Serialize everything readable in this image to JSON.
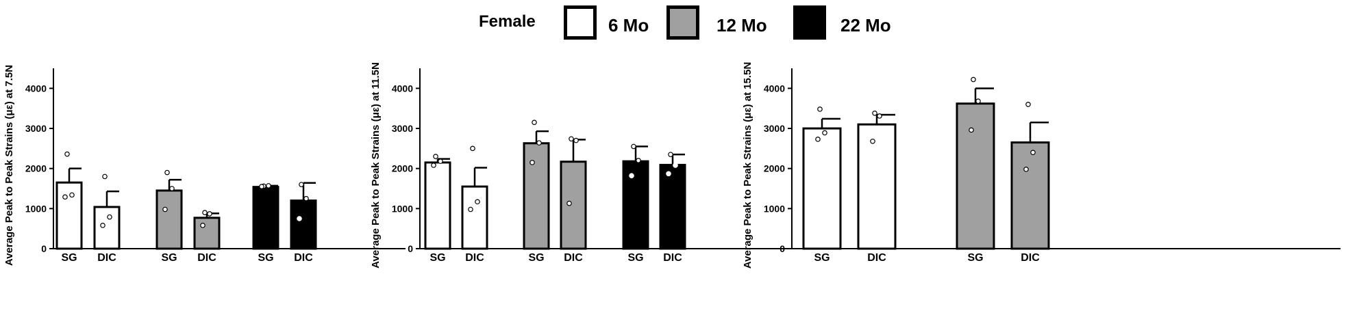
{
  "legend": {
    "title": "Female",
    "items": [
      {
        "label": "6 Mo",
        "color": "#ffffff"
      },
      {
        "label": "12 Mo",
        "color": "#a0a0a0"
      },
      {
        "label": "22 Mo",
        "color": "#000000"
      }
    ]
  },
  "chart_data": [
    {
      "type": "bar",
      "title": "",
      "ylabel": "Average Peak to Peak Strains (με) at 7.5N",
      "xlabel": "",
      "ylim": [
        0,
        4500
      ],
      "yticks": [
        0,
        1000,
        2000,
        3000,
        4000
      ],
      "groups": [
        {
          "series": "6 Mo",
          "color": "#ffffff",
          "bars": [
            {
              "category": "SG",
              "value": 1650,
              "error": 350,
              "points": [
                2360,
                1340,
                1290
              ]
            },
            {
              "category": "DIC",
              "value": 1040,
              "error": 390,
              "points": [
                1800,
                790,
                580
              ]
            }
          ]
        },
        {
          "series": "12 Mo",
          "color": "#a0a0a0",
          "bars": [
            {
              "category": "SG",
              "value": 1450,
              "error": 270,
              "points": [
                1900,
                1500,
                980
              ]
            },
            {
              "category": "DIC",
              "value": 770,
              "error": 110,
              "points": [
                900,
                870,
                580
              ]
            }
          ]
        },
        {
          "series": "22 Mo",
          "color": "#000000",
          "bars": [
            {
              "category": "SG",
              "value": 1540,
              "error": 30,
              "points": [
                1560,
                1570,
                1550
              ]
            },
            {
              "category": "DIC",
              "value": 1200,
              "error": 440,
              "points": [
                1600,
                1250,
                750
              ]
            }
          ]
        }
      ]
    },
    {
      "type": "bar",
      "title": "",
      "ylabel": "Average Peak to Peak Strains (με) at 11.5N",
      "xlabel": "",
      "ylim": [
        0,
        4500
      ],
      "yticks": [
        0,
        1000,
        2000,
        3000,
        4000
      ],
      "groups": [
        {
          "series": "6 Mo",
          "color": "#ffffff",
          "bars": [
            {
              "category": "SG",
              "value": 2150,
              "error": 90,
              "points": [
                2300,
                2180,
                2080
              ]
            },
            {
              "category": "DIC",
              "value": 1550,
              "error": 470,
              "points": [
                2500,
                1170,
                980
              ]
            }
          ]
        },
        {
          "series": "12 Mo",
          "color": "#a0a0a0",
          "bars": [
            {
              "category": "SG",
              "value": 2630,
              "error": 300,
              "points": [
                3150,
                2640,
                2150
              ]
            },
            {
              "category": "DIC",
              "value": 2170,
              "error": 550,
              "points": [
                2740,
                2700,
                1130
              ]
            }
          ]
        },
        {
          "series": "22 Mo",
          "color": "#000000",
          "bars": [
            {
              "category": "SG",
              "value": 2180,
              "error": 370,
              "points": [
                2550,
                2200,
                1820
              ]
            },
            {
              "category": "DIC",
              "value": 2090,
              "error": 260,
              "points": [
                2350,
                2080,
                1870
              ]
            }
          ]
        }
      ]
    },
    {
      "type": "bar",
      "title": "",
      "ylabel": "Average Peak to Peak Strains (με) at 15.5N",
      "xlabel": "",
      "ylim": [
        0,
        4500
      ],
      "yticks": [
        0,
        1000,
        2000,
        3000,
        4000
      ],
      "groups": [
        {
          "series": "6 Mo",
          "color": "#ffffff",
          "bars": [
            {
              "category": "SG",
              "value": 3000,
              "error": 240,
              "points": [
                3480,
                2890,
                2730
              ]
            },
            {
              "category": "DIC",
              "value": 3100,
              "error": 240,
              "points": [
                3380,
                3310,
                2680
              ]
            }
          ]
        },
        {
          "series": "12 Mo",
          "color": "#a0a0a0",
          "bars": [
            {
              "category": "SG",
              "value": 3620,
              "error": 380,
              "points": [
                4220,
                3680,
                2960
              ]
            },
            {
              "category": "DIC",
              "value": 2650,
              "error": 500,
              "points": [
                3600,
                2400,
                1980
              ]
            }
          ]
        }
      ]
    }
  ]
}
